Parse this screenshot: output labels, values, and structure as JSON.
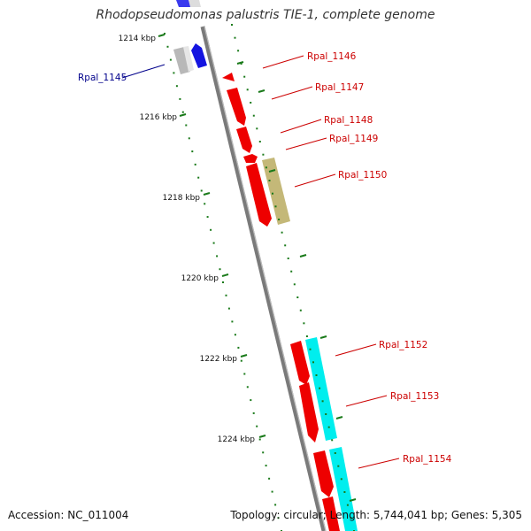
{
  "header": {
    "title": "Rhodopseudomonas palustris TIE-1, complete genome"
  },
  "footer": {
    "accession": "Accession: NC_011004",
    "topology": "Topology: circular; Length: 5,744,041 bp; Genes: 5,305"
  },
  "ruler": {
    "ticks": [
      "1214 kbp",
      "1216 kbp",
      "1218 kbp",
      "1220 kbp",
      "1222 kbp",
      "1224 kbp"
    ],
    "tick_color": "#1a7a1a"
  },
  "genes": [
    {
      "label": "Rpal_1145",
      "color": "#00008b"
    },
    {
      "label": "Rpal_1146",
      "color": "#cc0000"
    },
    {
      "label": "Rpal_1147",
      "color": "#cc0000"
    },
    {
      "label": "Rpal_1148",
      "color": "#cc0000"
    },
    {
      "label": "Rpal_1149",
      "color": "#cc0000"
    },
    {
      "label": "Rpal_1150",
      "color": "#cc0000"
    },
    {
      "label": "Rpal_1152",
      "color": "#cc0000"
    },
    {
      "label": "Rpal_1153",
      "color": "#cc0000"
    },
    {
      "label": "Rpal_1154",
      "color": "#cc0000"
    }
  ],
  "feature_colors": {
    "cds": "#ee0000",
    "blue": "#1010dd",
    "gray": "#b8b8b8",
    "tan": "#c4b878",
    "cyan": "#00eeee",
    "backbone": "#8a8a8a"
  }
}
